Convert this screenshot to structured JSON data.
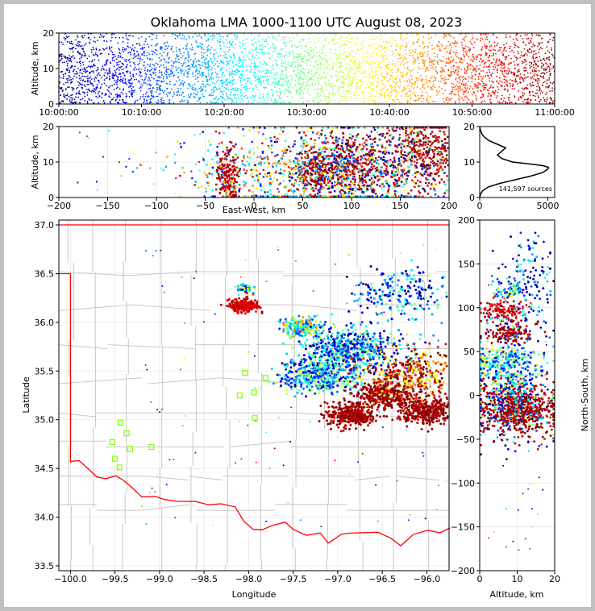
{
  "title": "Oklahoma LMA 1000-1100 UTC August 08, 2023",
  "source_count_label": "141,597 sources",
  "colormap": [
    "#00008f",
    "#0000ff",
    "#0080ff",
    "#00ffff",
    "#80ff80",
    "#ffff00",
    "#ff8000",
    "#ff0000",
    "#800000"
  ],
  "border_color": "#ff0000",
  "county_line_color": "#c8c8c8",
  "chart_data": [
    {
      "type": "scatter",
      "panel": "time-altitude",
      "title": "Oklahoma LMA 1000-1100 UTC August 08, 2023",
      "xlabel": "",
      "ylabel": "Altitude, km",
      "xticks": [
        "10:00:00",
        "10:10:00",
        "10:20:00",
        "10:30:00",
        "10:40:00",
        "10:50:00",
        "11:00:00"
      ],
      "yticks": [
        "0",
        "10",
        "20"
      ],
      "xlim_minutes": [
        0,
        60
      ],
      "ylim": [
        0,
        20
      ],
      "color_by": "time",
      "grid": true
    },
    {
      "type": "scatter",
      "panel": "east-west-altitude",
      "xlabel": "East-West, km",
      "ylabel": "Altitude, km",
      "xticks": [
        "−200",
        "−150",
        "−100",
        "−50",
        "0",
        "50",
        "100",
        "150",
        "200"
      ],
      "yticks": [
        "0",
        "10",
        "20"
      ],
      "xlim": [
        -200,
        200
      ],
      "ylim": [
        0,
        20
      ],
      "clusters": [
        {
          "x": -28,
          "y": 6,
          "t": 0.95,
          "sx": 6,
          "sy": 4,
          "n": 220
        },
        {
          "x": 65,
          "y": 7,
          "t": 0.97,
          "sx": 12,
          "sy": 4,
          "n": 260
        },
        {
          "x": 100,
          "y": 9,
          "t": 0.97,
          "sx": 20,
          "sy": 5,
          "n": 420
        },
        {
          "x": 175,
          "y": 13,
          "t": 0.96,
          "sx": 22,
          "sy": 6,
          "n": 520
        },
        {
          "x": 35,
          "y": 7,
          "t": 0.5,
          "sx": 50,
          "sy": 6,
          "n": 550
        },
        {
          "x": 120,
          "y": 8,
          "t": 0.3,
          "sx": 60,
          "sy": 7,
          "n": 500
        }
      ],
      "grid": true
    },
    {
      "type": "line",
      "panel": "altitude-histogram",
      "xticks": [
        "0",
        "5000"
      ],
      "yticks": [
        "0",
        "10",
        "20"
      ],
      "xlim": [
        0,
        5500
      ],
      "ylim": [
        0,
        20
      ],
      "altitude_km": [
        0,
        1,
        2,
        3,
        4,
        5,
        6,
        7,
        8,
        8.5,
        9,
        9.5,
        10,
        11,
        12,
        13,
        14,
        15,
        16,
        17,
        18,
        19,
        20
      ],
      "counts": [
        0,
        60,
        250,
        650,
        1500,
        2600,
        3700,
        4600,
        5000,
        5050,
        4600,
        3600,
        2400,
        1600,
        1300,
        1600,
        1900,
        1300,
        700,
        350,
        150,
        50,
        0
      ],
      "grid": false
    },
    {
      "type": "scatter",
      "panel": "plan-view",
      "xlabel": "Longitude",
      "ylabel": "Latitude",
      "xticks": [
        "−100.0",
        "−99.5",
        "−99.0",
        "−98.5",
        "−98.0",
        "−97.5",
        "−97.0",
        "−96.5",
        "−96.0"
      ],
      "yticks": [
        "33.5",
        "34.0",
        "34.5",
        "35.0",
        "35.5",
        "36.0",
        "36.5",
        "37.0"
      ],
      "xlim": [
        -100.13,
        -95.75
      ],
      "ylim": [
        33.45,
        37.05
      ],
      "stations": [
        [
          -99.44,
          34.97
        ],
        [
          -99.37,
          34.86
        ],
        [
          -99.53,
          34.77
        ],
        [
          -99.33,
          34.7
        ],
        [
          -99.09,
          34.72
        ],
        [
          -99.5,
          34.6
        ],
        [
          -99.45,
          34.51
        ],
        [
          -98.04,
          35.48
        ],
        [
          -97.81,
          35.43
        ],
        [
          -97.94,
          35.28
        ],
        [
          -98.1,
          35.25
        ],
        [
          -97.93,
          35.02
        ]
      ],
      "clusters": [
        {
          "lon": -98.04,
          "lat": 36.35,
          "t": 0.35,
          "s": 0.03,
          "n": 60
        },
        {
          "lon": -98.05,
          "lat": 36.17,
          "t": 0.92,
          "s": 0.06,
          "n": 200
        },
        {
          "lon": -97.4,
          "lat": 35.95,
          "t": 0.45,
          "s": 0.08,
          "n": 220
        },
        {
          "lon": -96.85,
          "lat": 35.72,
          "t": 0.25,
          "s": 0.2,
          "n": 600
        },
        {
          "lon": -97.2,
          "lat": 35.45,
          "t": 0.3,
          "s": 0.15,
          "n": 450
        },
        {
          "lon": -96.85,
          "lat": 35.05,
          "t": 0.97,
          "s": 0.1,
          "n": 350
        },
        {
          "lon": -96.5,
          "lat": 35.25,
          "t": 0.97,
          "s": 0.1,
          "n": 300
        },
        {
          "lon": -96.0,
          "lat": 35.1,
          "t": 0.97,
          "s": 0.12,
          "n": 400
        },
        {
          "lon": -96.2,
          "lat": 35.45,
          "t": 0.85,
          "s": 0.2,
          "n": 400
        },
        {
          "lon": -96.3,
          "lat": 36.3,
          "t": 0.2,
          "s": 0.2,
          "n": 200
        }
      ],
      "grid": true
    },
    {
      "type": "scatter",
      "panel": "altitude-north-south",
      "xlabel": "Altitude, km",
      "ylabel": "North-South, km",
      "xticks": [
        "0",
        "10",
        "20"
      ],
      "yticks": [
        "200",
        "150",
        "100",
        "50",
        "0",
        "−50",
        "−100",
        "−150",
        "−200"
      ],
      "xlim": [
        0,
        20
      ],
      "ylim": [
        -200,
        200
      ],
      "clusters": [
        {
          "z": 6,
          "y": 97,
          "t": 0.93,
          "sz": 3,
          "sy": 6,
          "n": 120
        },
        {
          "z": 8,
          "y": 120,
          "t": 0.35,
          "sz": 2,
          "sy": 4,
          "n": 60
        },
        {
          "z": 8,
          "y": 72,
          "t": 0.96,
          "sz": 3,
          "sy": 6,
          "n": 140
        },
        {
          "z": 7,
          "y": 40,
          "t": 0.4,
          "sz": 4,
          "sy": 10,
          "n": 200
        },
        {
          "z": 10,
          "y": -15,
          "t": 0.97,
          "sz": 5,
          "sy": 15,
          "n": 700
        },
        {
          "z": 8,
          "y": 10,
          "t": 0.25,
          "sz": 5,
          "sy": 30,
          "n": 400
        },
        {
          "z": 12,
          "y": 130,
          "t": 0.15,
          "sz": 4,
          "sy": 25,
          "n": 150
        }
      ],
      "grid": true
    }
  ]
}
